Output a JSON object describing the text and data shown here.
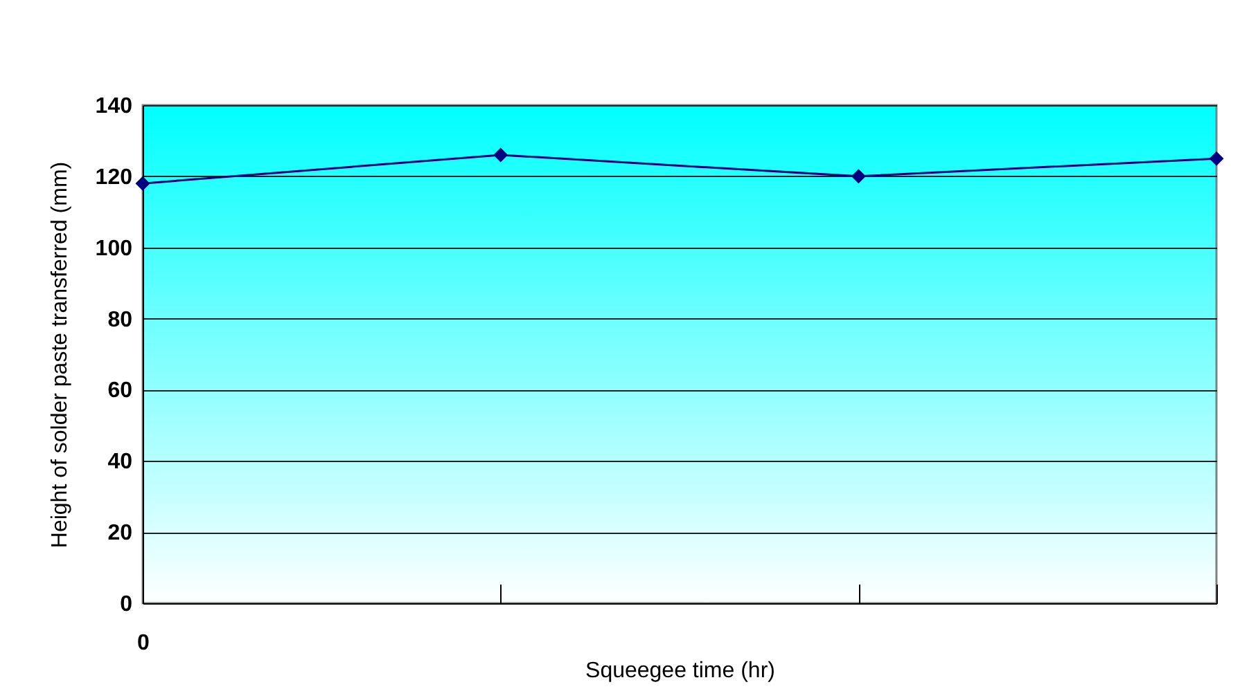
{
  "chart_data": {
    "type": "line",
    "xlabel": "Squeegee time (hr)",
    "ylabel": "Height of solder paste transferred (mm)",
    "categories": [
      "0",
      null,
      null,
      null
    ],
    "series": [
      {
        "color": "#000080",
        "values": [
          118,
          126,
          120,
          125
        ]
      }
    ],
    "ylim": [
      0,
      140
    ],
    "yticks": [
      0,
      20,
      40,
      60,
      80,
      100,
      120,
      140
    ],
    "grid": "y",
    "marker": "diamond",
    "line_style": "solid"
  }
}
